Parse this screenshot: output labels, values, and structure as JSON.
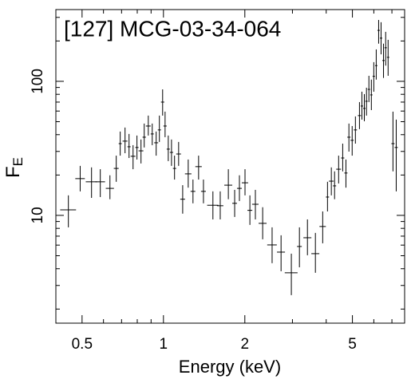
{
  "chart_data": {
    "type": "scatter",
    "title": "[127] MCG-03-34-064",
    "xlabel": "Energy (keV)",
    "ylabel": {
      "base": "F",
      "sub": "E"
    },
    "xlog": true,
    "ylog": true,
    "color": "#000000",
    "xlim": [
      0.4,
      7.8
    ],
    "ylim": [
      1.57,
      343
    ],
    "xticks": [
      0.5,
      1,
      2,
      5
    ],
    "yticks": [
      10,
      100
    ],
    "xminorticks": [
      0.4,
      0.6,
      0.7,
      0.8,
      0.9,
      3,
      4,
      6,
      7
    ],
    "yminorticks": [
      2,
      3,
      4,
      5,
      6,
      7,
      8,
      9,
      20,
      30,
      40,
      50,
      60,
      70,
      80,
      90,
      200,
      300
    ],
    "x": [
      0.445,
      0.492,
      0.542,
      0.584,
      0.634,
      0.669,
      0.692,
      0.721,
      0.746,
      0.772,
      0.798,
      0.826,
      0.849,
      0.879,
      0.909,
      0.94,
      0.966,
      0.993,
      1.014,
      1.042,
      1.071,
      1.099,
      1.138,
      1.178,
      1.235,
      1.286,
      1.349,
      1.406,
      1.524,
      1.622,
      1.738,
      1.834,
      1.91,
      2.003,
      2.088,
      2.188,
      2.328,
      2.523,
      2.723,
      2.972,
      3.184,
      3.409,
      3.648,
      3.882,
      4.044,
      4.178,
      4.295,
      4.446,
      4.603,
      4.731,
      4.853,
      4.989,
      5.129,
      5.309,
      5.42,
      5.534,
      5.636,
      5.754,
      5.875,
      5.998,
      6.124,
      6.252,
      6.383,
      6.516,
      6.637,
      6.776,
      7.063,
      7.261
    ],
    "xerr": [
      0.03,
      0.02,
      0.026,
      0.024,
      0.022,
      0.014,
      0.009,
      0.015,
      0.01,
      0.016,
      0.011,
      0.017,
      0.012,
      0.018,
      0.012,
      0.016,
      0.013,
      0.014,
      0.014,
      0.014,
      0.015,
      0.015,
      0.023,
      0.024,
      0.034,
      0.026,
      0.037,
      0.029,
      0.073,
      0.044,
      0.059,
      0.037,
      0.039,
      0.054,
      0.043,
      0.06,
      0.079,
      0.103,
      0.093,
      0.162,
      0.065,
      0.116,
      0.124,
      0.106,
      0.055,
      0.085,
      0.058,
      0.091,
      0.063,
      0.064,
      0.066,
      0.068,
      0.07,
      0.072,
      0.055,
      0.056,
      0.057,
      0.059,
      0.06,
      0.061,
      0.062,
      0.064,
      0.065,
      0.066,
      0.068,
      0.069,
      0.096,
      0.099
    ],
    "y": [
      11.0,
      18.8,
      17.8,
      17.8,
      15.9,
      22.4,
      34.3,
      35.8,
      32.5,
      27.6,
      32.1,
      30.3,
      38.3,
      46.4,
      40.5,
      34.8,
      43.4,
      70.0,
      46.4,
      31.2,
      29.5,
      22.4,
      28.7,
      13.2,
      20.4,
      15.1,
      23.1,
      15.1,
      11.9,
      11.8,
      16.8,
      12.3,
      15.9,
      17.5,
      10.9,
      12.1,
      8.72,
      6.02,
      5.32,
      3.73,
      5.86,
      6.81,
      5.18,
      8.26,
      13.7,
      18.0,
      16.6,
      22.1,
      26.8,
      20.7,
      38.3,
      36.3,
      43.4,
      55.5,
      65.4,
      62.8,
      71.0,
      87.1,
      79.2,
      109,
      131,
      240,
      210,
      143,
      178,
      151,
      34.3,
      32.1
    ],
    "ylow": [
      8.14,
      15.1,
      13.5,
      13.7,
      13.2,
      17.8,
      27.9,
      29.1,
      26.8,
      22.1,
      26.1,
      24.4,
      32.1,
      39.4,
      33.4,
      27.9,
      35.3,
      55.5,
      38.3,
      25.4,
      23.4,
      18.5,
      23.4,
      10.3,
      16.1,
      12.3,
      18.5,
      12.3,
      9.33,
      9.33,
      13.2,
      9.73,
      12.8,
      14.1,
      8.49,
      9.33,
      6.63,
      4.4,
      3.83,
      2.54,
      4.1,
      5.04,
      3.73,
      6.19,
      10.7,
      14.1,
      13.2,
      17.3,
      21.3,
      16.1,
      29.9,
      27.9,
      34.3,
      44.0,
      51.8,
      50.4,
      55.5,
      70.0,
      61.0,
      83.7,
      103,
      191,
      159,
      106,
      131,
      110,
      21.3,
      15.1
    ],
    "yhigh": [
      14.1,
      23.4,
      22.8,
      22.1,
      19.9,
      27.9,
      42.2,
      45.2,
      40.5,
      33.4,
      39.4,
      36.8,
      48.4,
      55.5,
      48.4,
      42.2,
      55.5,
      87.1,
      59.4,
      39.4,
      36.8,
      27.9,
      35.3,
      16.8,
      26.1,
      18.5,
      27.9,
      18.5,
      15.1,
      15.1,
      22.1,
      15.5,
      19.9,
      22.1,
      14.1,
      15.5,
      11.5,
      8.14,
      7.1,
      5.18,
      8.14,
      9.33,
      7.4,
      10.7,
      17.8,
      22.8,
      21.3,
      27.9,
      34.3,
      26.1,
      48.4,
      46.4,
      54.7,
      70.0,
      83.7,
      80.3,
      89.6,
      110,
      103,
      139,
      173,
      287,
      276,
      191,
      234,
      204,
      59.4,
      51.8
    ]
  }
}
